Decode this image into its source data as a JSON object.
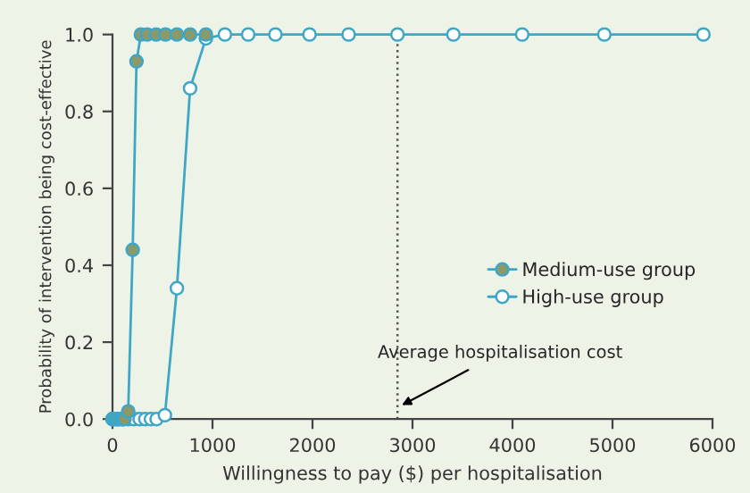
{
  "chart_data": {
    "type": "line",
    "xlabel": "Willingness to pay ($) per hospitalisation",
    "ylabel": "Probability of intervention being cost-effective",
    "xlim": [
      0,
      6000
    ],
    "xticks": [
      0,
      1000,
      2000,
      3000,
      4000,
      5000,
      6000
    ],
    "ylim": [
      0,
      1.0
    ],
    "yticks": [
      {
        "value": 0,
        "label": "0.0"
      },
      {
        "value": 0.2,
        "label": "0.2"
      },
      {
        "value": 0.4,
        "label": "0.4"
      },
      {
        "value": 0.6,
        "label": "0.6"
      },
      {
        "value": 0.8,
        "label": "0.8"
      },
      {
        "value": 1.0,
        "label": "1.0"
      }
    ],
    "grid": false,
    "legend": "right",
    "marker": "circle",
    "series": [
      {
        "name": "Medium-use group",
        "color": "#8c9a6a",
        "x": [
          0,
          20,
          40,
          60,
          80,
          100,
          120,
          157,
          202,
          240,
          284,
          347,
          436,
          530,
          644,
          776,
          934
        ],
        "values": [
          0,
          0,
          0,
          0,
          0,
          0,
          0,
          0.02,
          0.44,
          0.93,
          1.0,
          1.0,
          1.0,
          1.0,
          1.0,
          1.0,
          1.0
        ]
      },
      {
        "name": "High-use group",
        "color": "#ffffff",
        "x": [
          0,
          50,
          100,
          157,
          214,
          271,
          328,
          384,
          441,
          524,
          644,
          776,
          934,
          1124,
          1357,
          1629,
          1970,
          2361,
          2850,
          3409,
          4097,
          4918,
          5909
        ],
        "values": [
          0,
          0,
          0,
          0,
          0,
          0,
          0,
          0,
          0,
          0.01,
          0.34,
          0.86,
          0.99,
          1.0,
          1.0,
          1.0,
          1.0,
          1.0,
          1.0,
          1.0,
          1.0,
          1.0,
          1.0
        ]
      }
    ],
    "ref_lines": [
      {
        "axis": "x",
        "value": 2850,
        "line_style": "dotted",
        "color": "#555555"
      }
    ],
    "annotations": [
      {
        "text": "Average hospitalisation cost",
        "x": 2850,
        "y": 0.03
      }
    ]
  }
}
